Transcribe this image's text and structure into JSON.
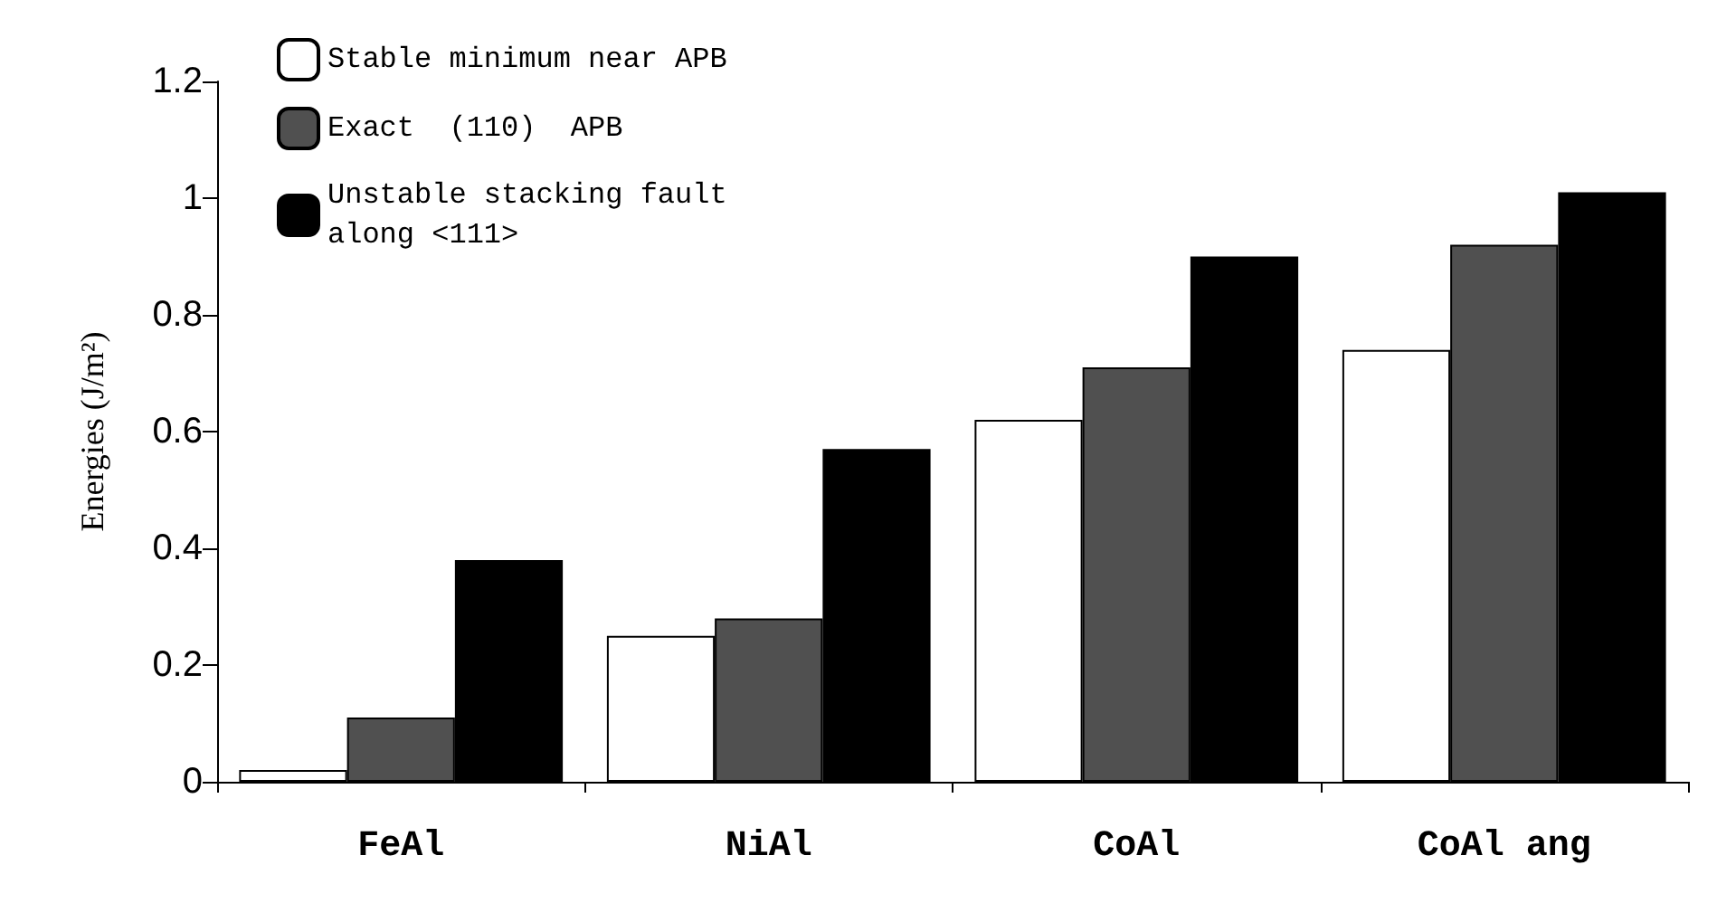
{
  "chart_data": {
    "type": "bar",
    "ylabel": "Energies (J/m²)",
    "categories": [
      "FeAl",
      "NiAl",
      "CoAl",
      "CoAl ang"
    ],
    "series": [
      {
        "name": "Stable minimum near APB",
        "color": "#ffffff",
        "values": [
          0.02,
          0.25,
          0.62,
          0.74
        ]
      },
      {
        "name": "Exact  (110)  APB",
        "color": "#505050",
        "values": [
          0.11,
          0.28,
          0.71,
          0.92
        ]
      },
      {
        "name": "Unstable stacking fault along <111>",
        "color": "#000000",
        "values": [
          0.38,
          0.57,
          0.9,
          1.01
        ]
      }
    ],
    "ylim": [
      0,
      1.2
    ],
    "yticks": [
      0,
      0.2,
      0.4,
      0.6,
      0.8,
      1,
      1.2
    ],
    "grid": false,
    "legend": "top left"
  }
}
